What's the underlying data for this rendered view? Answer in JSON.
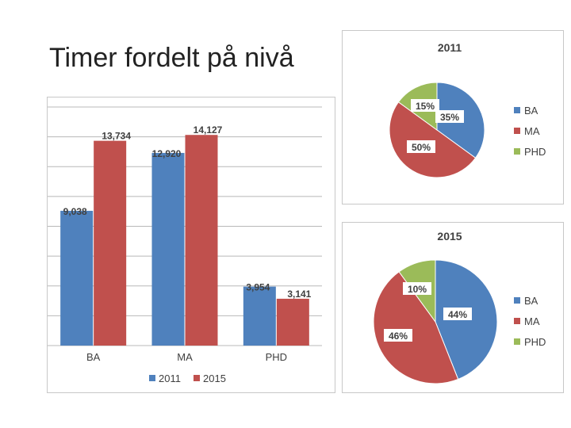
{
  "slide": {
    "title": "Timer fordelt på nivå"
  },
  "colors": {
    "BA": "#4f81bd",
    "MA": "#c0504d",
    "PHD": "#9bbb59",
    "grid": "#b8b8b8",
    "text": "#404040"
  },
  "chart_data": [
    {
      "type": "bar",
      "categories": [
        "BA",
        "MA",
        "PHD"
      ],
      "series": [
        {
          "name": "2011",
          "values": [
            9038,
            12920,
            3954
          ],
          "labels": [
            "9,038",
            "12,920",
            "3,954"
          ]
        },
        {
          "name": "2015",
          "values": [
            13734,
            14127,
            3141
          ],
          "labels": [
            "13,734",
            "14,127",
            "3,141"
          ]
        }
      ],
      "ylim": [
        0,
        16000
      ],
      "grid": true,
      "legend": "bottom"
    },
    {
      "type": "pie",
      "title": "2011",
      "categories": [
        "BA",
        "MA",
        "PHD"
      ],
      "values": [
        35,
        50,
        15
      ],
      "labels": [
        "35%",
        "50%",
        "15%"
      ],
      "legend": "right"
    },
    {
      "type": "pie",
      "title": "2015",
      "categories": [
        "BA",
        "MA",
        "PHD"
      ],
      "values": [
        44,
        46,
        10
      ],
      "labels": [
        "44%",
        "46%",
        "10%"
      ],
      "legend": "right"
    }
  ]
}
